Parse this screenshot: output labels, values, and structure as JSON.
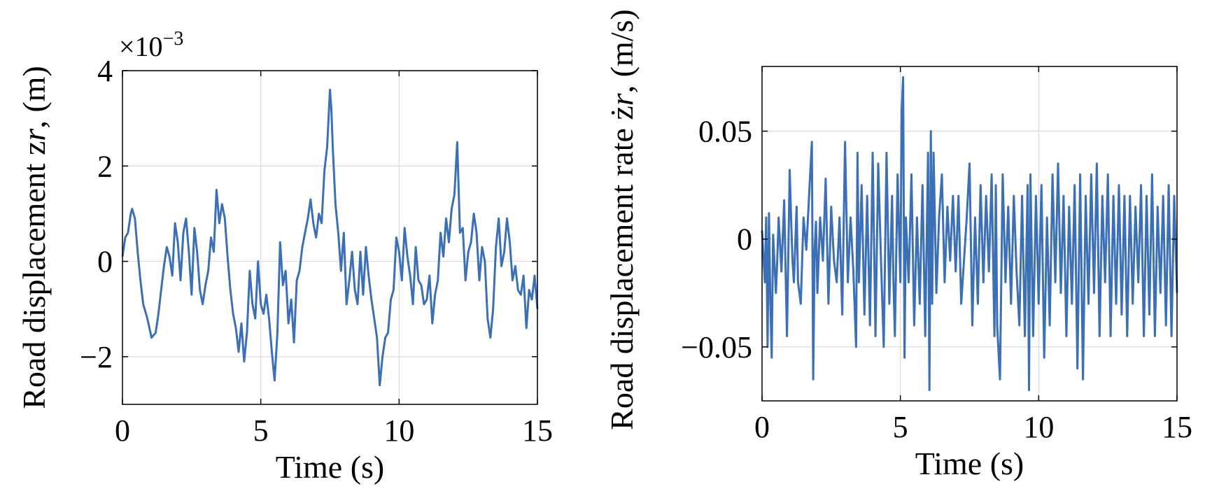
{
  "chart_data": [
    {
      "type": "line",
      "xlabel": "Time (s)",
      "ylabel": "Road displacement z",
      "ylabel_var_sub": "r",
      "ylabel_unit": ", (m)",
      "exponent_prefix": "×10",
      "exponent_power": "−3",
      "xlim": [
        0,
        15
      ],
      "ylim": [
        -3,
        4
      ],
      "xticks": [
        0,
        5,
        10,
        15
      ],
      "xtick_labels": [
        "0",
        "5",
        "10",
        "15"
      ],
      "yticks": [
        -2,
        0,
        2,
        4
      ],
      "ytick_labels": [
        "−2",
        "0",
        "2",
        "4"
      ],
      "grid": true,
      "color": "#3b6fb6",
      "series": [
        {
          "x": [
            0,
            0.1,
            0.2,
            0.3,
            0.35,
            0.45,
            0.55,
            0.65,
            0.75,
            0.9,
            1.05,
            1.2,
            1.3,
            1.4,
            1.5,
            1.6,
            1.7,
            1.8,
            1.9,
            2.0,
            2.1,
            2.2,
            2.3,
            2.4,
            2.5,
            2.6,
            2.7,
            2.8,
            2.9,
            3.0,
            3.1,
            3.2,
            3.3,
            3.4,
            3.5,
            3.6,
            3.7,
            3.8,
            3.9,
            4.0,
            4.1,
            4.2,
            4.3,
            4.4,
            4.5,
            4.6,
            4.7,
            4.8,
            4.9,
            5.0,
            5.1,
            5.2,
            5.3,
            5.4,
            5.5,
            5.6,
            5.7,
            5.8,
            5.9,
            6.0,
            6.1,
            6.2,
            6.3,
            6.4,
            6.5,
            6.6,
            6.7,
            6.8,
            6.9,
            7.0,
            7.1,
            7.2,
            7.3,
            7.4,
            7.5,
            7.55,
            7.6,
            7.7,
            7.8,
            7.9,
            8.0,
            8.1,
            8.2,
            8.3,
            8.4,
            8.5,
            8.6,
            8.7,
            8.8,
            8.9,
            9.0,
            9.1,
            9.2,
            9.3,
            9.4,
            9.5,
            9.6,
            9.7,
            9.8,
            9.9,
            10.0,
            10.1,
            10.2,
            10.3,
            10.4,
            10.5,
            10.6,
            10.7,
            10.8,
            10.9,
            11.0,
            11.1,
            11.2,
            11.3,
            11.4,
            11.5,
            11.6,
            11.7,
            11.8,
            11.9,
            12.0,
            12.1,
            12.2,
            12.3,
            12.4,
            12.5,
            12.6,
            12.7,
            12.8,
            12.9,
            13.0,
            13.1,
            13.2,
            13.3,
            13.4,
            13.5,
            13.6,
            13.7,
            13.8,
            13.9,
            14.0,
            14.1,
            14.2,
            14.3,
            14.4,
            14.5,
            14.6,
            14.7,
            14.8,
            14.9,
            15.0
          ],
          "y": [
            0.1,
            0.5,
            0.6,
            1.0,
            1.1,
            0.9,
            0.2,
            -0.4,
            -0.9,
            -1.2,
            -1.6,
            -1.5,
            -1.1,
            -0.6,
            -0.1,
            0.3,
            0.1,
            -0.3,
            0.8,
            0.4,
            -0.4,
            0.6,
            0.9,
            0.2,
            -0.7,
            0.7,
            0.2,
            -0.6,
            -0.9,
            -0.5,
            -0.2,
            0.5,
            0.2,
            1.5,
            0.8,
            1.2,
            0.9,
            0.1,
            -0.6,
            -1.1,
            -1.4,
            -1.9,
            -1.3,
            -2.1,
            -1.5,
            -0.2,
            -0.9,
            -1.2,
            0.0,
            -0.9,
            -1.1,
            -0.7,
            -1.2,
            -1.9,
            -2.5,
            -1.5,
            0.4,
            -0.5,
            -0.2,
            -1.3,
            -0.8,
            -1.7,
            -0.4,
            -0.2,
            0.3,
            0.6,
            0.9,
            1.3,
            0.8,
            0.5,
            1.0,
            0.8,
            1.9,
            2.4,
            3.6,
            3.2,
            2.4,
            1.2,
            0.6,
            -0.2,
            0.6,
            -0.9,
            -0.4,
            0.2,
            -0.6,
            -0.9,
            0.2,
            -0.7,
            0.3,
            -0.3,
            -0.8,
            -1.2,
            -1.6,
            -2.6,
            -2.0,
            -1.6,
            -1.5,
            -0.8,
            -0.6,
            0.5,
            0.2,
            -0.4,
            0.7,
            0.1,
            -0.3,
            -0.9,
            0.3,
            -0.4,
            -0.5,
            -0.9,
            -0.8,
            -0.3,
            -1.3,
            -0.7,
            -0.4,
            0.6,
            0.1,
            0.9,
            0.4,
            1.1,
            1.4,
            2.5,
            0.6,
            0.7,
            -0.4,
            0.2,
            0.4,
            1.0,
            0.6,
            -0.4,
            0.3,
            0.0,
            -1.2,
            -1.6,
            -1.0,
            0.3,
            0.9,
            -0.1,
            0.2,
            0.9,
            0.4,
            -0.4,
            -0.1,
            -0.6,
            -0.7,
            -0.3,
            -1.4,
            -0.6,
            -0.8,
            -0.3,
            -1.0
          ]
        }
      ]
    },
    {
      "type": "line",
      "xlabel": "Time (s)",
      "ylabel": "Road displacement rate ż",
      "ylabel_var_sub": "r",
      "ylabel_unit": ", (m/s)",
      "xlim": [
        0,
        15
      ],
      "ylim": [
        -0.075,
        0.08
      ],
      "xticks": [
        0,
        5,
        10,
        15
      ],
      "xtick_labels": [
        "0",
        "5",
        "10",
        "15"
      ],
      "yticks": [
        -0.05,
        0,
        0.05
      ],
      "ytick_labels": [
        "−0.05",
        "0",
        "0.05"
      ],
      "grid": true,
      "color": "#3b6fb6",
      "series": [
        {
          "x": [
            0,
            0.05,
            0.1,
            0.15,
            0.2,
            0.25,
            0.3,
            0.35,
            0.4,
            0.5,
            0.55,
            0.6,
            0.7,
            0.8,
            0.9,
            1.0,
            1.05,
            1.1,
            1.15,
            1.25,
            1.3,
            1.4,
            1.5,
            1.6,
            1.7,
            1.8,
            1.85,
            1.9,
            1.95,
            2.0,
            2.1,
            2.2,
            2.3,
            2.4,
            2.5,
            2.6,
            2.7,
            2.8,
            2.9,
            3.0,
            3.1,
            3.2,
            3.3,
            3.4,
            3.45,
            3.5,
            3.6,
            3.7,
            3.8,
            3.9,
            4.0,
            4.1,
            4.2,
            4.3,
            4.4,
            4.5,
            4.6,
            4.7,
            4.75,
            4.8,
            4.9,
            5.0,
            5.05,
            5.1,
            5.15,
            5.2,
            5.3,
            5.4,
            5.5,
            5.6,
            5.7,
            5.8,
            5.9,
            6.0,
            6.05,
            6.1,
            6.15,
            6.2,
            6.3,
            6.4,
            6.5,
            6.6,
            6.7,
            6.8,
            6.9,
            7.0,
            7.1,
            7.2,
            7.3,
            7.4,
            7.5,
            7.6,
            7.7,
            7.8,
            7.9,
            8.0,
            8.1,
            8.2,
            8.3,
            8.4,
            8.45,
            8.5,
            8.6,
            8.7,
            8.8,
            8.9,
            9.0,
            9.1,
            9.2,
            9.3,
            9.4,
            9.5,
            9.6,
            9.65,
            9.7,
            9.8,
            9.9,
            10.0,
            10.1,
            10.2,
            10.3,
            10.4,
            10.5,
            10.6,
            10.7,
            10.8,
            10.9,
            11.0,
            11.1,
            11.2,
            11.3,
            11.4,
            11.5,
            11.6,
            11.7,
            11.8,
            11.9,
            12.0,
            12.1,
            12.2,
            12.3,
            12.4,
            12.5,
            12.6,
            12.7,
            12.8,
            12.9,
            13.0,
            13.1,
            13.2,
            13.3,
            13.4,
            13.5,
            13.6,
            13.7,
            13.8,
            13.9,
            14.0,
            14.1,
            14.2,
            14.3,
            14.4,
            14.5,
            14.6,
            14.7,
            14.8,
            14.9,
            15.0
          ],
          "y": [
            0.004,
            -0.008,
            -0.02,
            0.01,
            -0.05,
            0.012,
            -0.03,
            -0.055,
            0.002,
            -0.025,
            -0.01,
            0.01,
            -0.015,
            0.018,
            -0.045,
            0.032,
            0.01,
            -0.01,
            -0.02,
            0.015,
            -0.02,
            -0.03,
            0.01,
            -0.005,
            0.02,
            0.045,
            -0.065,
            -0.005,
            0.008,
            -0.025,
            0.01,
            -0.01,
            0.028,
            -0.03,
            0.015,
            -0.01,
            -0.02,
            0.01,
            -0.035,
            0.045,
            -0.02,
            0.01,
            -0.015,
            -0.05,
            0.04,
            -0.02,
            0.025,
            -0.035,
            0.02,
            -0.04,
            0.04,
            -0.045,
            0.035,
            -0.01,
            -0.05,
            0.04,
            -0.03,
            0.02,
            -0.02,
            -0.045,
            0.03,
            -0.02,
            0.06,
            0.075,
            -0.055,
            0.01,
            -0.02,
            0.03,
            -0.04,
            0.01,
            -0.03,
            0.025,
            -0.045,
            0.04,
            -0.07,
            0.05,
            -0.03,
            0.04,
            -0.025,
            0.01,
            0.03,
            -0.02,
            0.015,
            -0.01,
            0.02,
            -0.015,
            0.02,
            -0.03,
            -0.01,
            0.01,
            0.035,
            -0.04,
            0.01,
            -0.03,
            0.025,
            -0.02,
            0.02,
            -0.015,
            0.03,
            -0.045,
            0.025,
            -0.04,
            -0.065,
            0.03,
            -0.02,
            0.015,
            -0.03,
            0.02,
            -0.015,
            -0.04,
            0.02,
            -0.045,
            0.025,
            -0.07,
            0.03,
            -0.045,
            0.02,
            -0.03,
            0.025,
            -0.055,
            0.01,
            -0.04,
            0.03,
            -0.02,
            0.035,
            -0.025,
            0.02,
            -0.045,
            0.015,
            -0.03,
            0.025,
            -0.06,
            0.03,
            -0.065,
            0.02,
            -0.03,
            0.03,
            -0.025,
            0.035,
            -0.045,
            0.02,
            -0.02,
            0.03,
            -0.045,
            0.02,
            -0.03,
            0.025,
            -0.035,
            0.02,
            -0.045,
            0.02,
            -0.03,
            0.015,
            -0.02,
            0.025,
            -0.045,
            0.02,
            -0.035,
            0.03,
            -0.045,
            0.015,
            -0.025,
            0.02,
            -0.04,
            0.025,
            -0.045,
            0.02,
            -0.025
          ]
        }
      ]
    }
  ]
}
